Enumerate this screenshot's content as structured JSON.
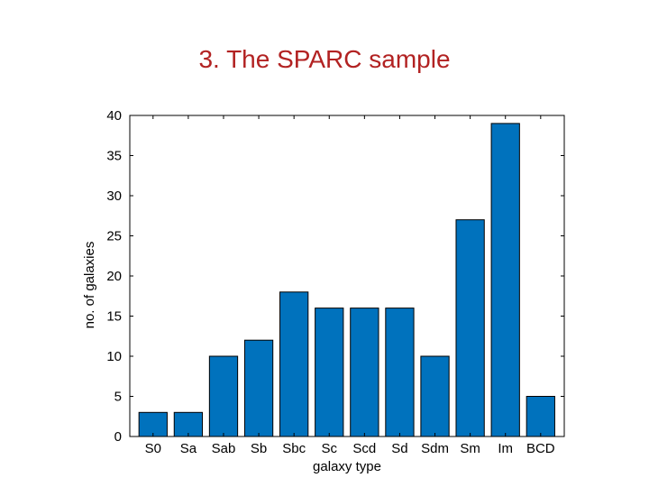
{
  "slide": {
    "title": "3. The SPARC sample"
  },
  "chart_data": {
    "type": "bar",
    "title": "",
    "xlabel": "galaxy type",
    "ylabel": "no. of galaxies",
    "categories": [
      "S0",
      "Sa",
      "Sab",
      "Sb",
      "Sbc",
      "Sc",
      "Scd",
      "Sd",
      "Sdm",
      "Sm",
      "Im",
      "BCD"
    ],
    "values": [
      3,
      3,
      10,
      12,
      18,
      16,
      16,
      16,
      10,
      27,
      39,
      5
    ],
    "ylim": [
      0,
      40
    ],
    "yticks": [
      0,
      5,
      10,
      15,
      20,
      25,
      30,
      35,
      40
    ],
    "grid": false,
    "legend": "none",
    "bar_color": "#0072bd",
    "bar_edge": "#000000",
    "title_color": "#b22222"
  }
}
